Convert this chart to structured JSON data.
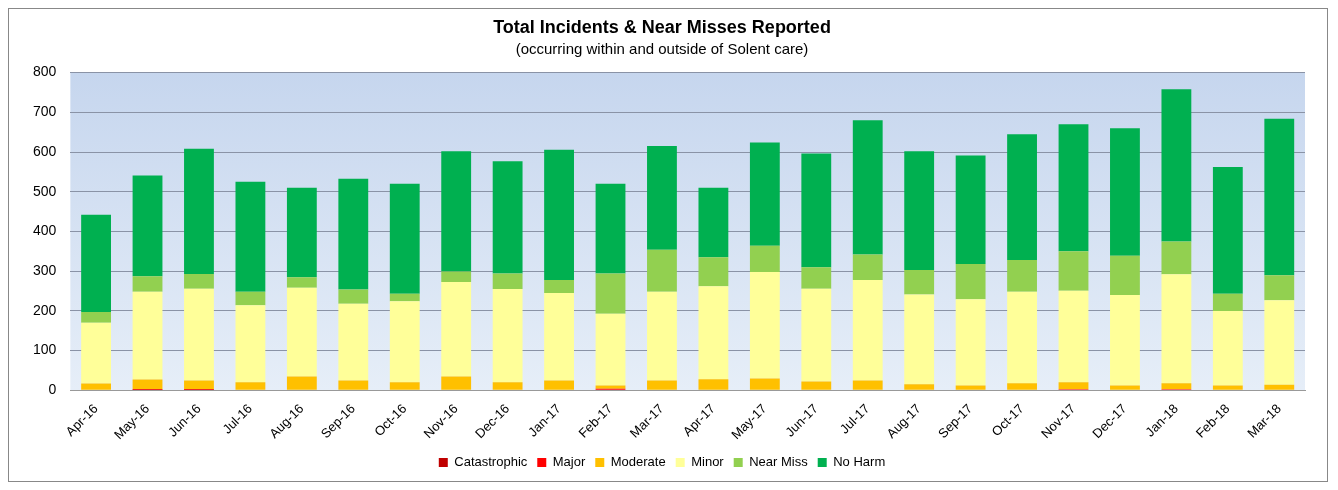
{
  "chart_data": {
    "type": "bar",
    "title": "Total Incidents & Near Misses Reported",
    "subtitle": "(occurring within and outside of Solent care)",
    "categories": [
      "Apr-16",
      "May-16",
      "Jun-16",
      "Jul-16",
      "Aug-16",
      "Sep-16",
      "Oct-16",
      "Nov-16",
      "Dec-16",
      "Jan-17",
      "Feb-17",
      "Mar-17",
      "Apr-17",
      "May-17",
      "Jun-17",
      "Jul-17",
      "Aug-17",
      "Sep-17",
      "Oct-17",
      "Nov-17",
      "Dec-17",
      "Jan-18",
      "Feb-18",
      "Mar-18"
    ],
    "stacked": true,
    "ylim": [
      0,
      800
    ],
    "yticks": [
      0,
      100,
      200,
      300,
      400,
      500,
      600,
      700,
      800
    ],
    "grid": "y",
    "legend": "bottom",
    "series": [
      {
        "name": "Catastrophic",
        "color": "#c00000",
        "values": [
          0,
          1,
          1,
          0,
          0,
          0,
          0,
          0,
          0,
          0,
          0,
          0,
          0,
          0,
          0,
          0,
          0,
          0,
          0,
          0,
          0,
          0,
          0,
          0
        ]
      },
      {
        "name": "Major",
        "color": "#ff0000",
        "values": [
          0,
          2,
          2,
          0,
          0,
          0,
          0,
          0,
          0,
          0,
          4,
          0,
          0,
          0,
          0,
          0,
          0,
          0,
          0,
          3,
          0,
          3,
          0,
          0
        ]
      },
      {
        "name": "Moderate",
        "color": "#ffc000",
        "values": [
          17,
          24,
          22,
          20,
          35,
          25,
          20,
          35,
          20,
          25,
          8,
          25,
          28,
          30,
          22,
          25,
          15,
          12,
          18,
          17,
          12,
          15,
          12,
          14
        ]
      },
      {
        "name": "Minor",
        "color": "#ffff99",
        "values": [
          153,
          221,
          231,
          194,
          223,
          193,
          204,
          238,
          235,
          220,
          181,
          223,
          234,
          268,
          234,
          253,
          226,
          217,
          230,
          231,
          228,
          274,
          188,
          213
        ]
      },
      {
        "name": "Near Miss",
        "color": "#92d050",
        "values": [
          27,
          39,
          37,
          34,
          27,
          36,
          19,
          26,
          39,
          33,
          101,
          106,
          73,
          66,
          54,
          64,
          62,
          89,
          80,
          99,
          99,
          83,
          43,
          63
        ]
      },
      {
        "name": "No Harm",
        "color": "#00b050",
        "values": [
          245,
          254,
          315,
          277,
          225,
          279,
          277,
          303,
          283,
          328,
          226,
          261,
          175,
          260,
          286,
          338,
          299,
          273,
          317,
          320,
          321,
          383,
          319,
          394
        ]
      }
    ]
  }
}
